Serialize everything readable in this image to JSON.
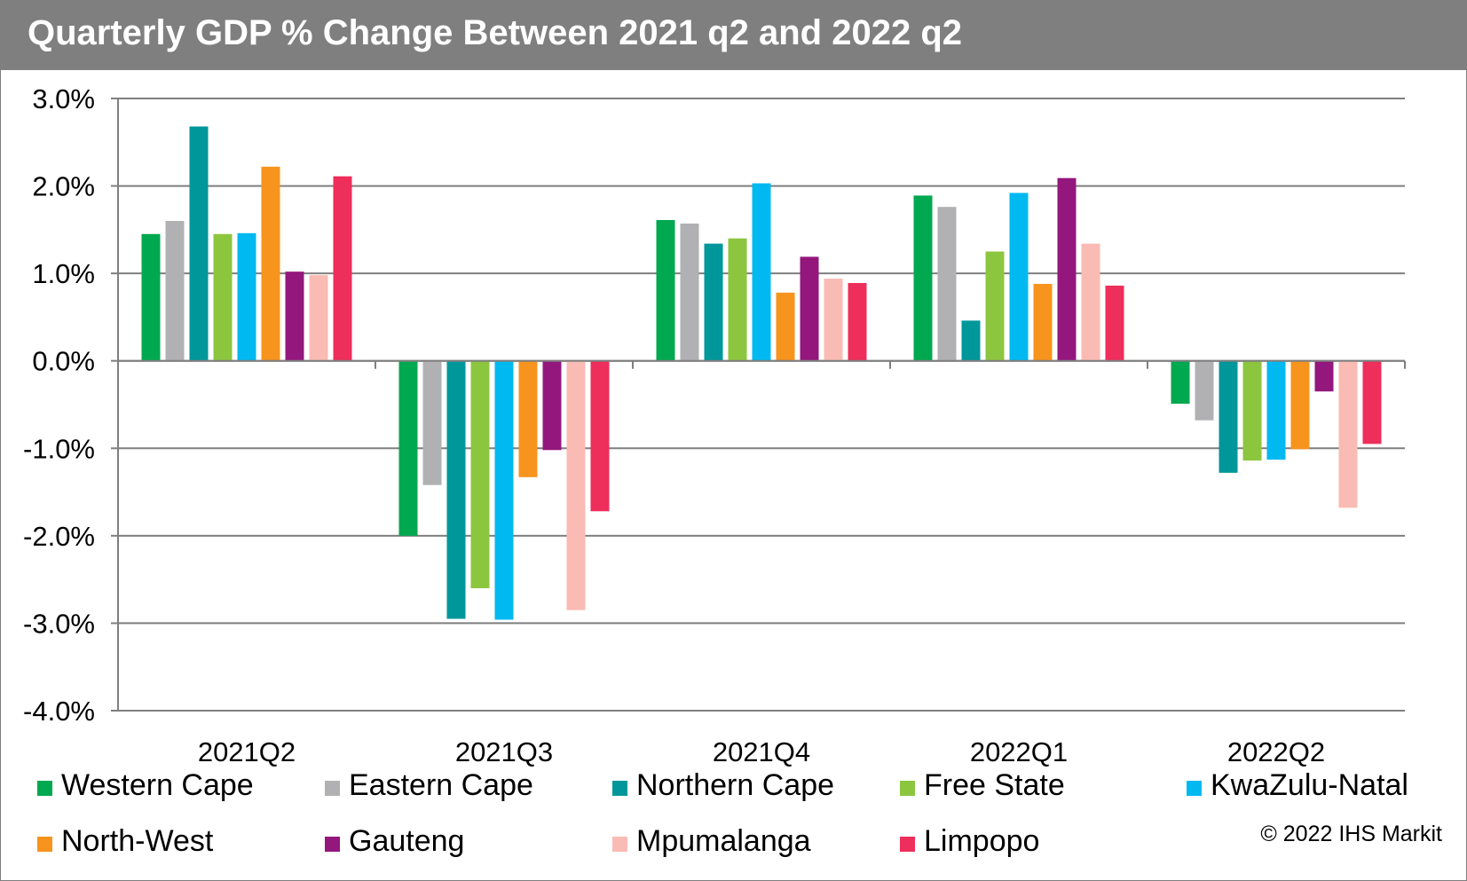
{
  "title": "Quarterly GDP % Change Between 2021 q2 and 2022 q2",
  "copyright": "© 2022 IHS Markit",
  "chart_data": {
    "type": "bar",
    "title": "Quarterly GDP % Change Between 2021 q2 and 2022 q2",
    "xlabel": "",
    "ylabel": "",
    "ylim": [
      -4.0,
      3.0
    ],
    "yticks": [
      3.0,
      2.0,
      1.0,
      0.0,
      -1.0,
      -2.0,
      -3.0,
      -4.0
    ],
    "ytick_labels": [
      "3.0%",
      "2.0%",
      "1.0%",
      "0.0%",
      "-1.0%",
      "-2.0%",
      "-3.0%",
      "-4.0%"
    ],
    "grid": true,
    "legend_position": "bottom",
    "categories": [
      "2021Q2",
      "2021Q3",
      "2021Q4",
      "2022Q1",
      "2022Q2"
    ],
    "series": [
      {
        "name": "Western Cape",
        "color": "#00a84f",
        "values": [
          1.45,
          -2.0,
          1.61,
          1.89,
          -0.49
        ]
      },
      {
        "name": "Eastern Cape",
        "color": "#b1b1b3",
        "values": [
          1.6,
          -1.42,
          1.57,
          1.76,
          -0.68
        ]
      },
      {
        "name": "Northern Cape",
        "color": "#00979a",
        "values": [
          2.68,
          -2.95,
          1.34,
          0.46,
          -1.28
        ]
      },
      {
        "name": "Free State",
        "color": "#8cc63f",
        "values": [
          1.45,
          -2.6,
          1.4,
          1.25,
          -1.14
        ]
      },
      {
        "name": "KwaZulu-Natal",
        "color": "#00b9f1",
        "values": [
          1.46,
          -2.96,
          2.03,
          1.92,
          -1.13
        ]
      },
      {
        "name": "North-West",
        "color": "#f7941d",
        "values": [
          2.22,
          -1.33,
          0.78,
          0.88,
          -1.01
        ]
      },
      {
        "name": "Gauteng",
        "color": "#93177d",
        "values": [
          1.02,
          -1.02,
          1.19,
          2.09,
          -0.35
        ]
      },
      {
        "name": "Mpumalanga",
        "color": "#f9bbb3",
        "values": [
          0.98,
          -2.85,
          0.94,
          1.34,
          -1.68
        ]
      },
      {
        "name": "Limpopo",
        "color": "#ee2e5b",
        "values": [
          2.11,
          -1.72,
          0.89,
          0.86,
          -0.95
        ]
      }
    ]
  }
}
